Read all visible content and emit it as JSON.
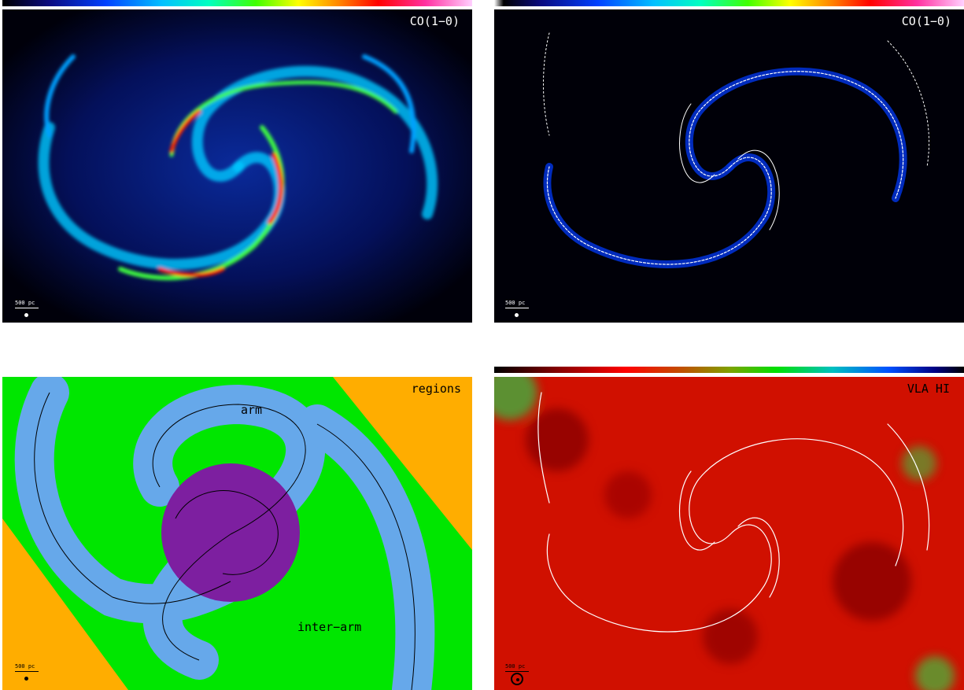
{
  "panels": [
    {
      "id": "co-map",
      "label": "CO(1−0)",
      "scale_bar": "500 pc",
      "colorbar": "rainbow"
    },
    {
      "id": "co-contours",
      "label": "CO(1−0)",
      "scale_bar": "500 pc",
      "colorbar": "rainbow"
    },
    {
      "id": "regions",
      "label": "regions",
      "scale_bar": "500 pc",
      "region_labels": {
        "arm": "arm",
        "inter_arm": "inter−arm"
      },
      "colors": {
        "inter_arm": "#00e600",
        "arm": "#66a8ea",
        "center": "#7d1fa0",
        "outside": "#ffad00"
      }
    },
    {
      "id": "vla-hi",
      "label": "VLA HI",
      "scale_bar": "500 pc",
      "colorbar": "hi"
    }
  ]
}
